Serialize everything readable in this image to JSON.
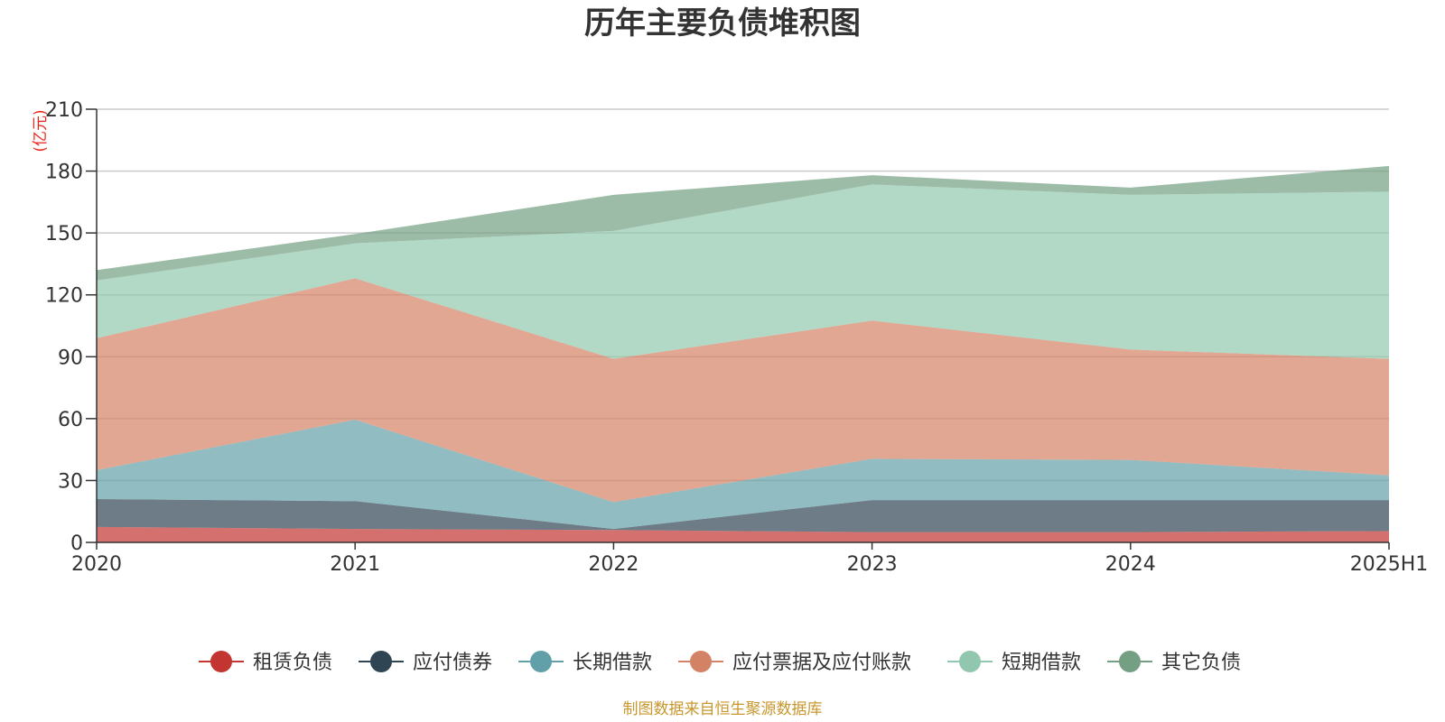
{
  "chart_data": {
    "type": "area",
    "stacked": true,
    "title": "历年主要负债堆积图",
    "unit_label": "(亿元)",
    "categories": [
      "2020",
      "2021",
      "2022",
      "2023",
      "2024",
      "2025H1"
    ],
    "ylim": [
      0,
      210
    ],
    "yticks": [
      "0",
      "30",
      "60",
      "90",
      "120",
      "150",
      "180",
      "210"
    ],
    "grid": true,
    "legend_position": "bottom",
    "series": [
      {
        "name": "租赁负债",
        "color": "#c23531",
        "values": [
          7.5,
          6.5,
          6,
          5,
          5,
          5.5
        ]
      },
      {
        "name": "应付债券",
        "color": "#2f4554",
        "values": [
          13.5,
          13.5,
          0.5,
          15.5,
          15.5,
          15
        ]
      },
      {
        "name": "长期借款",
        "color": "#61a0a8",
        "values": [
          14,
          39.5,
          13,
          20,
          19.5,
          12
        ]
      },
      {
        "name": "应付票据及应付账款",
        "color": "#d48265",
        "values": [
          64,
          68.5,
          69.5,
          67,
          53.5,
          56.5
        ]
      },
      {
        "name": "短期借款",
        "color": "#91c7ae",
        "values": [
          28,
          17,
          62,
          66,
          75,
          81
        ]
      },
      {
        "name": "其它负债",
        "color": "#749f83",
        "values": [
          5,
          4.5,
          17.5,
          4.5,
          3.5,
          12.5
        ]
      }
    ],
    "source": "制图数据来自恒生聚源数据库"
  }
}
